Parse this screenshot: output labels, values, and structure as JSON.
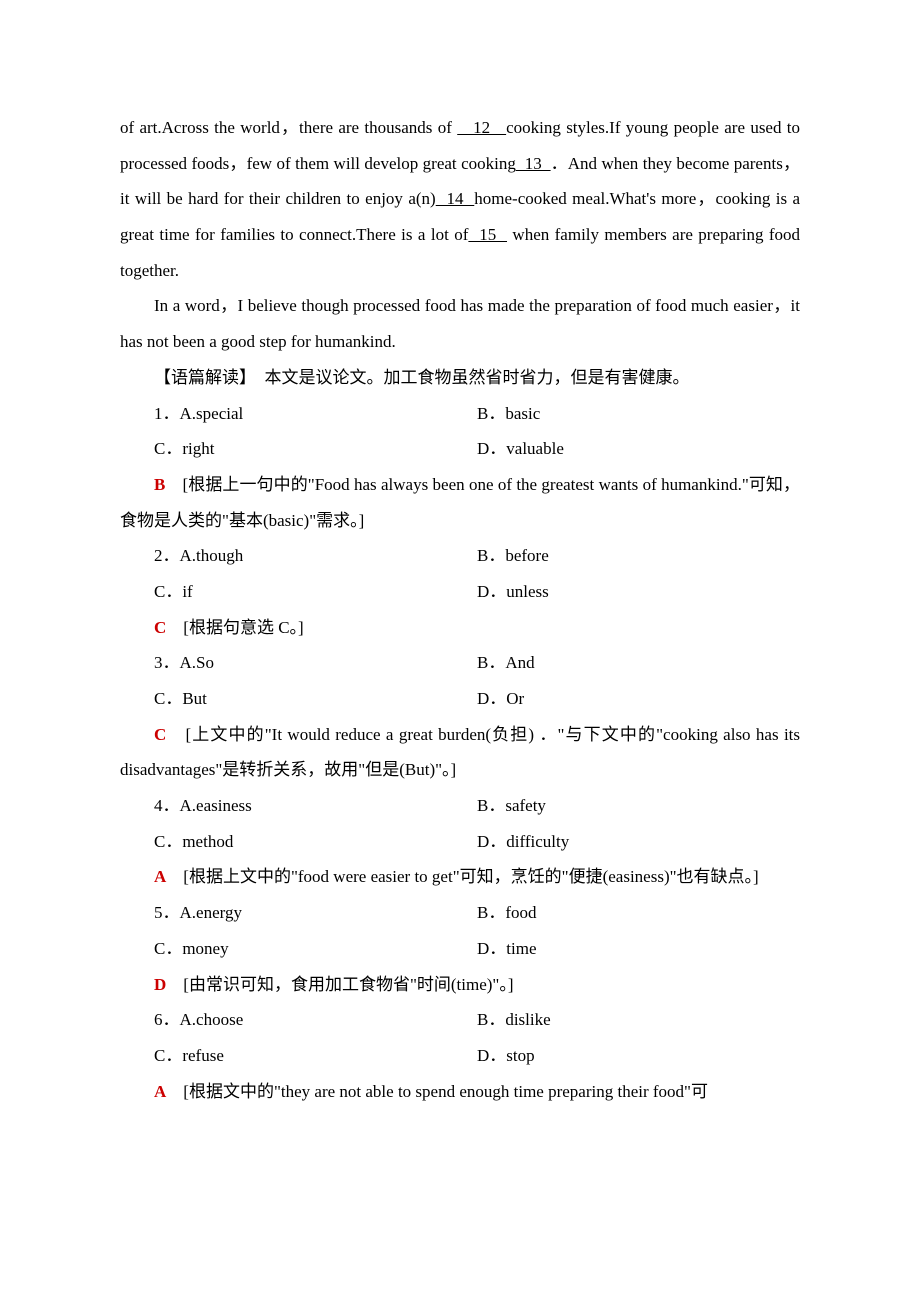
{
  "passage": {
    "p1_a": "of art.Across the world，there are thousands of ",
    "b12": "   12   ",
    "p1_b": "cooking styles.If young people are used to processed foods，few of them will develop great cooking",
    "b13": "  13  ",
    "p1_c": "．And when they become parents，it will be hard for their children to enjoy a(n)",
    "b14": "  14  ",
    "p1_d": "home-cooked meal.What's more，cooking is a great time for families to connect.There is a lot of",
    "b15": "  15  ",
    "p1_e": " when family members are preparing food together.",
    "p2": "In a word，I believe though processed food has made the preparation of food much easier，it has not been a good step for humankind."
  },
  "analysis_label": "【语篇解读】　本文是议论文。加工食物虽然省时省力，但是有害健康。",
  "questions": [
    {
      "num": "1",
      "a": "A.special",
      "b": "B．basic",
      "c": "C．right",
      "d": "D．valuable",
      "ans": "B",
      "exp_a": "[根据上一句中的\"Food has always been one of the greatest wants of humankind.\"可知，食物是人类的\"基本(basic)\"需求。]"
    },
    {
      "num": "2",
      "a": "A.though",
      "b": "B．before",
      "c": "C．if",
      "d": "D．unless",
      "ans": "C",
      "exp_a": "[根据句意选 C。]"
    },
    {
      "num": "3",
      "a": "A.So",
      "b": "B．And",
      "c": "C．But",
      "d": "D．Or",
      "ans": "C",
      "exp_a": "[上文中的\"It would reduce a great burden(负担) ．\"与下文中的\"cooking also has its disadvantages\"是转折关系，故用\"但是(But)\"。]"
    },
    {
      "num": "4",
      "a": "A.easiness",
      "b": "B．safety",
      "c": "C．method",
      "d": "D．difficulty",
      "ans": "A",
      "exp_a": "[根据上文中的\"food were easier to get\"可知，烹饪的\"便捷(easiness)\"也有缺点。]"
    },
    {
      "num": "5",
      "a": "A.energy",
      "b": "B．food",
      "c": "C．money",
      "d": "D．time",
      "ans": "D",
      "exp_a": "[由常识可知，食用加工食物省\"时间(time)\"。]"
    },
    {
      "num": "6",
      "a": "A.choose",
      "b": "B．dislike",
      "c": "C．refuse",
      "d": "D．stop",
      "ans": "A",
      "exp_a": "[根据文中的\"they are not able to spend enough time preparing their food\"可"
    }
  ]
}
